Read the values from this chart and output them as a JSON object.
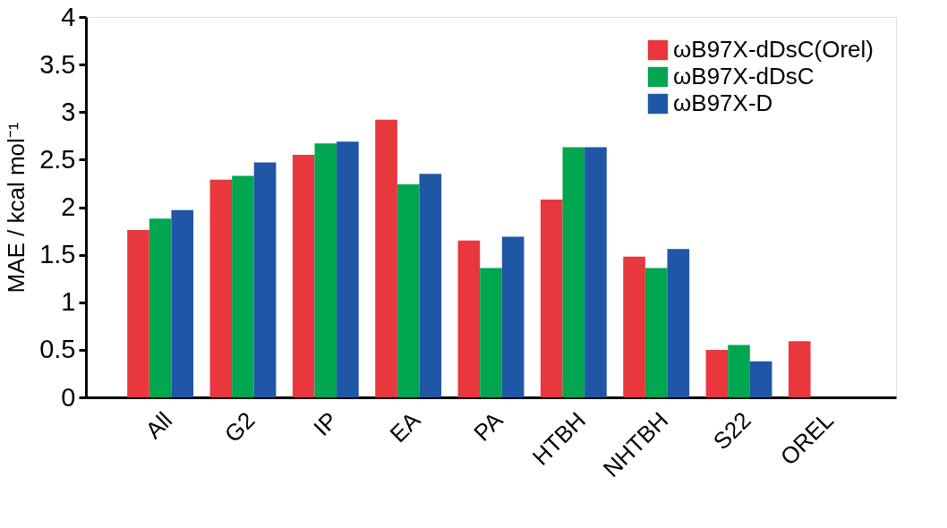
{
  "chart_data": {
    "type": "bar",
    "ylabel": "MAE / kcal mol⁻¹",
    "categories": [
      "All",
      "G2",
      "IP",
      "EA",
      "PA",
      "HTBH",
      "NHTBH",
      "S22",
      "OREL"
    ],
    "series": [
      {
        "name": "ωB97X-dDsC(Orel)",
        "color": "#e8383d",
        "values": [
          1.76,
          2.29,
          2.55,
          2.92,
          1.65,
          2.08,
          1.48,
          0.5,
          0.59
        ]
      },
      {
        "name": "ωB97X-dDsC",
        "color": "#00a650",
        "values": [
          1.88,
          2.33,
          2.67,
          2.24,
          1.36,
          2.63,
          1.36,
          0.55,
          null
        ]
      },
      {
        "name": "ωB97X-D",
        "color": "#1f56a5",
        "values": [
          1.97,
          2.47,
          2.69,
          2.35,
          1.69,
          2.63,
          1.56,
          0.38,
          null
        ]
      }
    ],
    "ylim": [
      0,
      4
    ],
    "yticks": [
      0,
      0.5,
      1,
      1.5,
      2,
      2.5,
      3,
      3.5,
      4
    ],
    "grid": false,
    "legend": "top right"
  }
}
